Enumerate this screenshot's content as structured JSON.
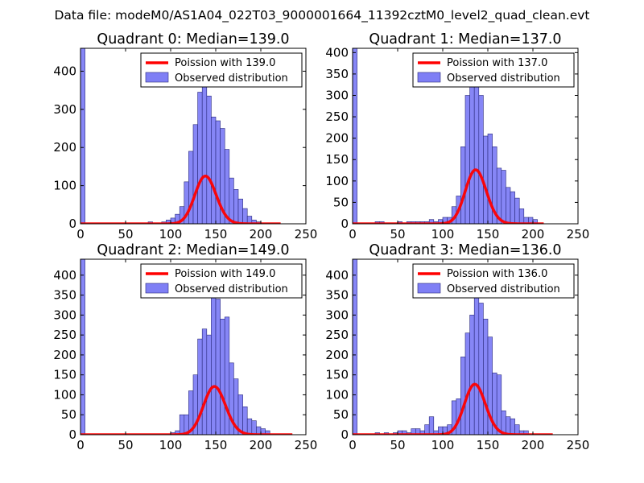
{
  "figure": {
    "suptitle": "Data file: modeM0/AS1A04_022T03_9000001664_11392cztM0_level2_quad_clean.evt"
  },
  "colors": {
    "bar_fill": "#7f7ff5",
    "bar_edge": "#28287a",
    "poisson_line": "#ff0000",
    "axis": "#000000",
    "background": "#ffffff"
  },
  "chart_data": [
    {
      "type": "bar",
      "title": "Quadrant 0: Median=139.0",
      "xlim": [
        0,
        250
      ],
      "ylim": [
        0,
        460
      ],
      "xticks": [
        0,
        50,
        100,
        150,
        200,
        250
      ],
      "yticks": [
        0,
        100,
        200,
        300,
        400
      ],
      "xtick_labels": [
        "0",
        "50",
        "100",
        "150",
        "200",
        "250"
      ],
      "ytick_labels": [
        "0",
        "100",
        "200",
        "300",
        "400"
      ],
      "bin_width": 5,
      "median": 139.0,
      "histogram": {
        "name": "Observed distribution",
        "bins": [
          {
            "x": 0,
            "y": 460
          },
          {
            "x": 75,
            "y": 5
          },
          {
            "x": 90,
            "y": 5
          },
          {
            "x": 95,
            "y": 10
          },
          {
            "x": 100,
            "y": 15
          },
          {
            "x": 105,
            "y": 25
          },
          {
            "x": 110,
            "y": 45
          },
          {
            "x": 115,
            "y": 110
          },
          {
            "x": 120,
            "y": 190
          },
          {
            "x": 125,
            "y": 260
          },
          {
            "x": 130,
            "y": 345
          },
          {
            "x": 135,
            "y": 375
          },
          {
            "x": 140,
            "y": 335
          },
          {
            "x": 145,
            "y": 280
          },
          {
            "x": 150,
            "y": 270
          },
          {
            "x": 155,
            "y": 250
          },
          {
            "x": 160,
            "y": 195
          },
          {
            "x": 165,
            "y": 120
          },
          {
            "x": 170,
            "y": 90
          },
          {
            "x": 175,
            "y": 65
          },
          {
            "x": 180,
            "y": 40
          },
          {
            "x": 185,
            "y": 20
          },
          {
            "x": 190,
            "y": 10
          },
          {
            "x": 195,
            "y": 5
          }
        ]
      },
      "poisson": {
        "name": "Poission with 139.0",
        "mean": 139.0,
        "total": 3700,
        "range": [
          0,
          222
        ]
      },
      "legend": {
        "position": "top-right",
        "entries": [
          "Poission with 139.0",
          "Observed distribution"
        ]
      }
    },
    {
      "type": "bar",
      "title": "Quadrant 1: Median=137.0",
      "xlim": [
        0,
        250
      ],
      "ylim": [
        0,
        410
      ],
      "xticks": [
        0,
        50,
        100,
        150,
        200,
        250
      ],
      "yticks": [
        0,
        50,
        100,
        150,
        200,
        250,
        300,
        350,
        400
      ],
      "xtick_labels": [
        "0",
        "50",
        "100",
        "150",
        "200",
        "250"
      ],
      "ytick_labels": [
        "0",
        "50",
        "100",
        "150",
        "200",
        "250",
        "300",
        "350",
        "400"
      ],
      "bin_width": 5,
      "median": 137.0,
      "histogram": {
        "name": "Observed distribution",
        "bins": [
          {
            "x": 0,
            "y": 410
          },
          {
            "x": 25,
            "y": 5
          },
          {
            "x": 30,
            "y": 5
          },
          {
            "x": 50,
            "y": 5
          },
          {
            "x": 60,
            "y": 5
          },
          {
            "x": 65,
            "y": 5
          },
          {
            "x": 70,
            "y": 5
          },
          {
            "x": 75,
            "y": 5
          },
          {
            "x": 80,
            "y": 5
          },
          {
            "x": 85,
            "y": 10
          },
          {
            "x": 90,
            "y": 5
          },
          {
            "x": 95,
            "y": 10
          },
          {
            "x": 100,
            "y": 15
          },
          {
            "x": 105,
            "y": 15
          },
          {
            "x": 110,
            "y": 40
          },
          {
            "x": 115,
            "y": 65
          },
          {
            "x": 120,
            "y": 180
          },
          {
            "x": 125,
            "y": 300
          },
          {
            "x": 130,
            "y": 345
          },
          {
            "x": 135,
            "y": 370
          },
          {
            "x": 140,
            "y": 300
          },
          {
            "x": 145,
            "y": 205
          },
          {
            "x": 150,
            "y": 210
          },
          {
            "x": 155,
            "y": 180
          },
          {
            "x": 160,
            "y": 130
          },
          {
            "x": 165,
            "y": 125
          },
          {
            "x": 170,
            "y": 85
          },
          {
            "x": 175,
            "y": 75
          },
          {
            "x": 180,
            "y": 60
          },
          {
            "x": 185,
            "y": 35
          },
          {
            "x": 190,
            "y": 15
          },
          {
            "x": 195,
            "y": 15
          },
          {
            "x": 200,
            "y": 10
          }
        ]
      },
      "poisson": {
        "name": "Poission with 137.0",
        "mean": 137.0,
        "total": 3700,
        "range": [
          0,
          212
        ]
      },
      "legend": {
        "position": "top-right",
        "entries": [
          "Poission with 137.0",
          "Observed distribution"
        ]
      }
    },
    {
      "type": "bar",
      "title": "Quadrant 2: Median=149.0",
      "xlim": [
        0,
        250
      ],
      "ylim": [
        0,
        440
      ],
      "xticks": [
        0,
        50,
        100,
        150,
        200,
        250
      ],
      "yticks": [
        0,
        50,
        100,
        150,
        200,
        250,
        300,
        350,
        400
      ],
      "xtick_labels": [
        "0",
        "50",
        "100",
        "150",
        "200",
        "250"
      ],
      "ytick_labels": [
        "0",
        "50",
        "100",
        "150",
        "200",
        "250",
        "300",
        "350",
        "400"
      ],
      "bin_width": 5,
      "median": 149.0,
      "histogram": {
        "name": "Observed distribution",
        "bins": [
          {
            "x": 0,
            "y": 440
          },
          {
            "x": 100,
            "y": 5
          },
          {
            "x": 105,
            "y": 10
          },
          {
            "x": 110,
            "y": 50
          },
          {
            "x": 115,
            "y": 50
          },
          {
            "x": 120,
            "y": 110
          },
          {
            "x": 125,
            "y": 150
          },
          {
            "x": 130,
            "y": 240
          },
          {
            "x": 135,
            "y": 265
          },
          {
            "x": 140,
            "y": 250
          },
          {
            "x": 145,
            "y": 380
          },
          {
            "x": 150,
            "y": 340
          },
          {
            "x": 155,
            "y": 290
          },
          {
            "x": 160,
            "y": 295
          },
          {
            "x": 165,
            "y": 180
          },
          {
            "x": 170,
            "y": 140
          },
          {
            "x": 175,
            "y": 100
          },
          {
            "x": 180,
            "y": 70
          },
          {
            "x": 185,
            "y": 40
          },
          {
            "x": 190,
            "y": 35
          },
          {
            "x": 195,
            "y": 20
          },
          {
            "x": 200,
            "y": 15
          },
          {
            "x": 205,
            "y": 10
          }
        ]
      },
      "poisson": {
        "name": "Poission with 149.0",
        "mean": 149.0,
        "total": 3700,
        "range": [
          0,
          235
        ]
      },
      "legend": {
        "position": "top-right",
        "entries": [
          "Poission with 149.0",
          "Observed distribution"
        ]
      }
    },
    {
      "type": "bar",
      "title": "Quadrant 3: Median=136.0",
      "xlim": [
        0,
        250
      ],
      "ylim": [
        0,
        440
      ],
      "xticks": [
        0,
        50,
        100,
        150,
        200,
        250
      ],
      "yticks": [
        0,
        50,
        100,
        150,
        200,
        250,
        300,
        350,
        400
      ],
      "xtick_labels": [
        "0",
        "50",
        "100",
        "150",
        "200",
        "250"
      ],
      "ytick_labels": [
        "0",
        "50",
        "100",
        "150",
        "200",
        "250",
        "300",
        "350",
        "400"
      ],
      "bin_width": 5,
      "median": 136.0,
      "histogram": {
        "name": "Observed distribution",
        "bins": [
          {
            "x": 0,
            "y": 440
          },
          {
            "x": 25,
            "y": 5
          },
          {
            "x": 35,
            "y": 5
          },
          {
            "x": 45,
            "y": 5
          },
          {
            "x": 50,
            "y": 10
          },
          {
            "x": 55,
            "y": 10
          },
          {
            "x": 60,
            "y": 5
          },
          {
            "x": 65,
            "y": 15
          },
          {
            "x": 70,
            "y": 15
          },
          {
            "x": 75,
            "y": 10
          },
          {
            "x": 80,
            "y": 25
          },
          {
            "x": 85,
            "y": 45
          },
          {
            "x": 90,
            "y": 10
          },
          {
            "x": 95,
            "y": 20
          },
          {
            "x": 100,
            "y": 20
          },
          {
            "x": 105,
            "y": 25
          },
          {
            "x": 110,
            "y": 85
          },
          {
            "x": 115,
            "y": 90
          },
          {
            "x": 120,
            "y": 195
          },
          {
            "x": 125,
            "y": 255
          },
          {
            "x": 130,
            "y": 300
          },
          {
            "x": 135,
            "y": 380
          },
          {
            "x": 140,
            "y": 330
          },
          {
            "x": 145,
            "y": 290
          },
          {
            "x": 150,
            "y": 245
          },
          {
            "x": 155,
            "y": 155
          },
          {
            "x": 160,
            "y": 150
          },
          {
            "x": 165,
            "y": 60
          },
          {
            "x": 170,
            "y": 45
          },
          {
            "x": 175,
            "y": 40
          },
          {
            "x": 180,
            "y": 25
          },
          {
            "x": 185,
            "y": 10
          },
          {
            "x": 190,
            "y": 10
          }
        ]
      },
      "poisson": {
        "name": "Poission with 136.0",
        "mean": 136.0,
        "total": 3700,
        "range": [
          0,
          222
        ]
      },
      "legend": {
        "position": "top-right",
        "entries": [
          "Poission with 136.0",
          "Observed distribution"
        ]
      }
    }
  ]
}
